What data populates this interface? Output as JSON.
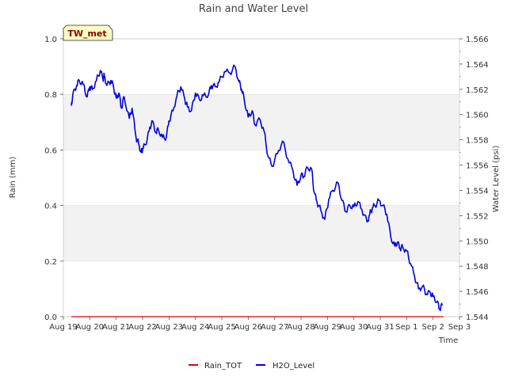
{
  "chart_data": {
    "type": "line",
    "title": "Rain and Water Level",
    "badge": "TW_met",
    "xlabel": "Time",
    "ylabel_left": "Rain (mm)",
    "ylabel_right": "Water Level (psi)",
    "x_ticks": [
      "Aug 19",
      "Aug 20",
      "Aug 21",
      "Aug 22",
      "Aug 23",
      "Aug 24",
      "Aug 25",
      "Aug 26",
      "Aug 27",
      "Aug 28",
      "Aug 29",
      "Aug 30",
      "Aug 31",
      "Sep 1",
      "Sep 2",
      "Sep 3"
    ],
    "xlim": [
      0,
      15
    ],
    "ylim_left": [
      0,
      1.0
    ],
    "left_ticks": [
      "0.0",
      "0.2",
      "0.4",
      "0.6",
      "0.8",
      "1.0"
    ],
    "ylim_right": [
      1.544,
      1.566
    ],
    "right_ticks": [
      "1.544",
      "1.546",
      "1.548",
      "1.550",
      "1.552",
      "1.554",
      "1.556",
      "1.558",
      "1.560",
      "1.562",
      "1.564",
      "1.566"
    ],
    "grid": "horizontal bands",
    "legend_position": "bottom-center",
    "series": [
      {
        "name": "Rain_TOT",
        "color": "#e00000",
        "axis": "left",
        "x": [
          0.3,
          14.4
        ],
        "y": [
          0.0,
          0.0
        ]
      },
      {
        "name": "H2O_Level",
        "color": "#0000dd",
        "axis": "right",
        "x": [
          0.3,
          0.35,
          0.5,
          0.6,
          0.75,
          0.9,
          1.0,
          1.1,
          1.25,
          1.4,
          1.5,
          1.55,
          1.65,
          1.8,
          1.9,
          2.0,
          2.1,
          2.2,
          2.3,
          2.5,
          2.6,
          2.75,
          2.85,
          2.95,
          3.0,
          3.1,
          3.25,
          3.35,
          3.5,
          3.6,
          3.75,
          3.9,
          4.0,
          4.15,
          4.3,
          4.45,
          4.6,
          4.7,
          4.85,
          5.0,
          5.15,
          5.3,
          5.5,
          5.6,
          5.75,
          5.9,
          6.1,
          6.3,
          6.5,
          6.65,
          6.75,
          6.85,
          7.0,
          7.15,
          7.25,
          7.45,
          7.6,
          7.75,
          7.9,
          8.1,
          8.3,
          8.5,
          8.7,
          8.85,
          9.0,
          9.1,
          9.25,
          9.4,
          9.5,
          9.6,
          9.75,
          9.9,
          10.05,
          10.2,
          10.4,
          10.55,
          10.7,
          10.85,
          11.0,
          11.15,
          11.3,
          11.5,
          11.6,
          11.7,
          11.8,
          11.95,
          12.1,
          12.25,
          12.4,
          12.55,
          12.65,
          12.75,
          12.85,
          13.0,
          13.15,
          13.3,
          13.45,
          13.6,
          13.75,
          13.9,
          14.0,
          14.15,
          14.25,
          14.35
        ],
        "y": [
          1.5607,
          1.5615,
          1.5623,
          1.5627,
          1.5624,
          1.5614,
          1.5622,
          1.562,
          1.5627,
          1.5635,
          1.5628,
          1.5631,
          1.5623,
          1.5627,
          1.5622,
          1.5613,
          1.5617,
          1.5605,
          1.5614,
          1.5597,
          1.5605,
          1.5582,
          1.5577,
          1.557,
          1.5573,
          1.5576,
          1.5587,
          1.5595,
          1.5586,
          1.5588,
          1.5582,
          1.5582,
          1.5595,
          1.5603,
          1.5615,
          1.5622,
          1.5612,
          1.5606,
          1.5603,
          1.5617,
          1.5612,
          1.5615,
          1.5616,
          1.5623,
          1.5622,
          1.5626,
          1.5634,
          1.5633,
          1.5638,
          1.5626,
          1.562,
          1.5612,
          1.5598,
          1.5603,
          1.5592,
          1.5596,
          1.5587,
          1.5567,
          1.5559,
          1.5569,
          1.5579,
          1.5565,
          1.5555,
          1.5544,
          1.5552,
          1.5551,
          1.5558,
          1.5557,
          1.5538,
          1.5531,
          1.5524,
          1.5517,
          1.5533,
          1.554,
          1.5546,
          1.5532,
          1.5523,
          1.5528,
          1.5527,
          1.5531,
          1.5525,
          1.5515,
          1.5521,
          1.5526,
          1.5528,
          1.5532,
          1.5528,
          1.5521,
          1.5503,
          1.5496,
          1.5499,
          1.5494,
          1.5495,
          1.5492,
          1.5482,
          1.5472,
          1.5462,
          1.5464,
          1.5458,
          1.5459,
          1.5456,
          1.5452,
          1.5446,
          1.5449
        ]
      }
    ]
  }
}
